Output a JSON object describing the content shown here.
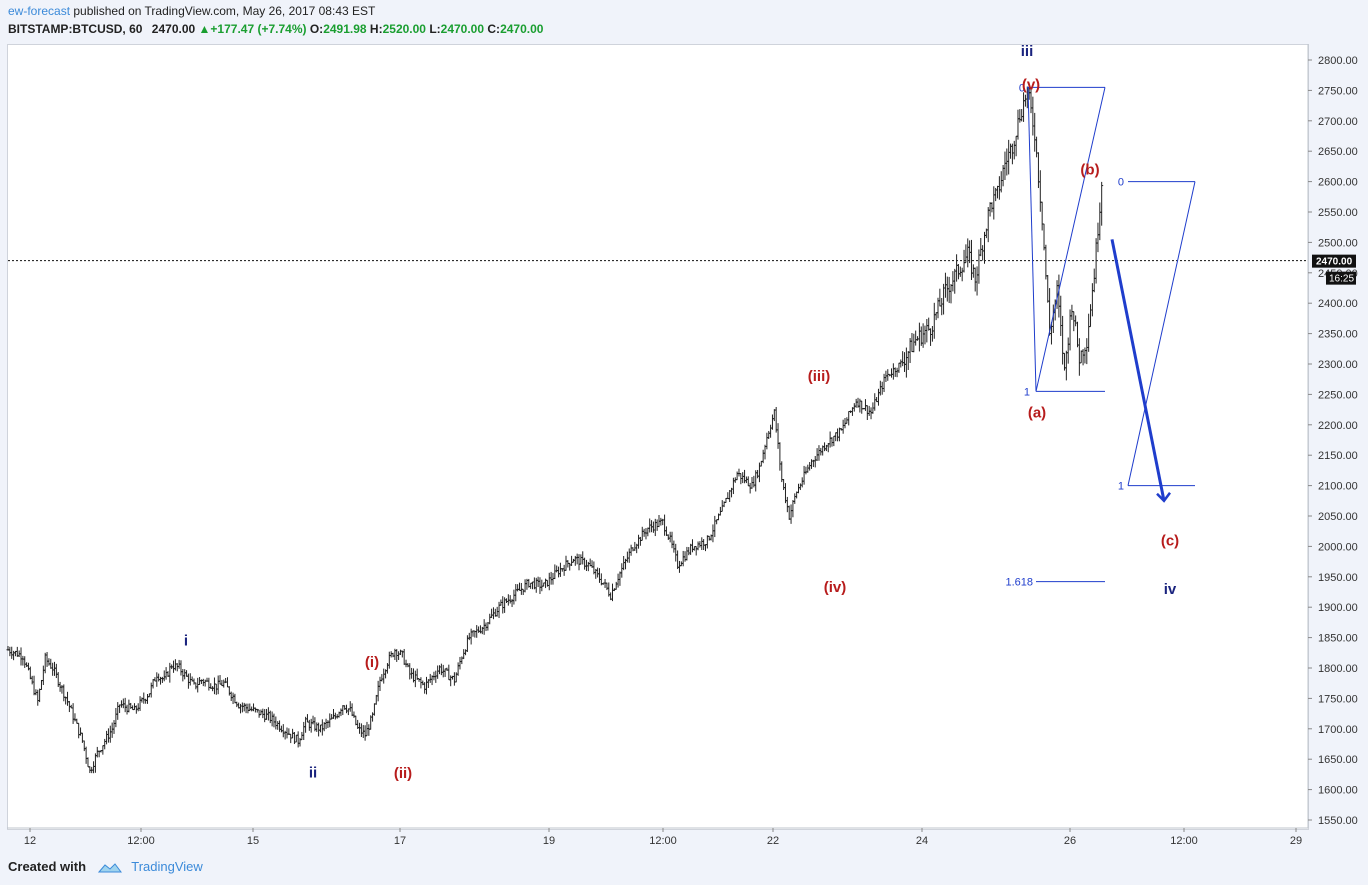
{
  "header": {
    "author": "ew-forecast",
    "published_text": " published on TradingView.com, May 26, 2017 08:43 EST",
    "symbol": "BITSTAMP:BTCUSD, 60",
    "last": "2470.00",
    "change_arrow": "▲",
    "change": "+177.47 (+7.74%)",
    "o_label": "O:",
    "o_value": "2491.98",
    "h_label": "H:",
    "h_value": "2520.00",
    "l_label": "L:",
    "l_value": "2470.00",
    "c_label": "C:",
    "c_value": "2470.00"
  },
  "footer": {
    "created_with": "Created with",
    "brand": "TradingView"
  },
  "price_tag": {
    "price": "2470.00",
    "countdown": "16:25"
  },
  "colors": {
    "wave_red": "#b71c1c",
    "wave_blue": "#1a237e",
    "fib_blue": "#1f3dcc",
    "arrow_blue": "#1f3dcc",
    "candle": "#222222",
    "price_tag": "#111111"
  },
  "chart_data": {
    "type": "candlestick",
    "symbol": "BITSTAMP:BTCUSD",
    "interval": "60",
    "ylim": [
      1530,
      2810
    ],
    "y_ticks": [
      "2800.00",
      "2750.00",
      "2700.00",
      "2650.00",
      "2600.00",
      "2550.00",
      "2500.00",
      "2450.00",
      "2400.00",
      "2350.00",
      "2300.00",
      "2250.00",
      "2200.00",
      "2150.00",
      "2100.00",
      "2050.00",
      "2000.00",
      "1950.00",
      "1900.00",
      "1850.00",
      "1800.00",
      "1750.00",
      "1700.00",
      "1650.00",
      "1600.00",
      "1550.00"
    ],
    "x_ticks": [
      "12",
      "12:00",
      "15",
      "17",
      "19",
      "12:00",
      "22",
      "24",
      "26",
      "12:00",
      "29"
    ],
    "last_price": 2470.0,
    "price_path": [
      [
        0,
        1830
      ],
      [
        2,
        1820
      ],
      [
        4,
        1745
      ],
      [
        5,
        1815
      ],
      [
        6,
        1800
      ],
      [
        8,
        1745
      ],
      [
        10,
        1680
      ],
      [
        11,
        1630
      ],
      [
        12,
        1660
      ],
      [
        14,
        1700
      ],
      [
        15,
        1740
      ],
      [
        17,
        1730
      ],
      [
        19,
        1760
      ],
      [
        20,
        1790
      ],
      [
        21,
        1780
      ],
      [
        22,
        1805
      ],
      [
        23,
        1800
      ],
      [
        25,
        1770
      ],
      [
        26,
        1780
      ],
      [
        28,
        1770
      ],
      [
        29,
        1775
      ],
      [
        31,
        1740
      ],
      [
        33,
        1730
      ],
      [
        35,
        1720
      ],
      [
        37,
        1700
      ],
      [
        39,
        1680
      ],
      [
        40,
        1710
      ],
      [
        42,
        1700
      ],
      [
        44,
        1720
      ],
      [
        45,
        1740
      ],
      [
        46,
        1730
      ],
      [
        47,
        1700
      ],
      [
        48,
        1690
      ],
      [
        49,
        1720
      ],
      [
        50,
        1780
      ],
      [
        51,
        1810
      ],
      [
        52,
        1830
      ],
      [
        53,
        1820
      ],
      [
        54,
        1790
      ],
      [
        56,
        1770
      ],
      [
        58,
        1800
      ],
      [
        60,
        1780
      ],
      [
        61,
        1820
      ],
      [
        62,
        1850
      ],
      [
        64,
        1870
      ],
      [
        66,
        1900
      ],
      [
        68,
        1920
      ],
      [
        70,
        1940
      ],
      [
        72,
        1935
      ],
      [
        74,
        1960
      ],
      [
        76,
        1980
      ],
      [
        78,
        1970
      ],
      [
        80,
        1940
      ],
      [
        81,
        1920
      ],
      [
        82,
        1950
      ],
      [
        84,
        2000
      ],
      [
        86,
        2030
      ],
      [
        88,
        2040
      ],
      [
        89,
        2010
      ],
      [
        90,
        1970
      ],
      [
        92,
        2000
      ],
      [
        94,
        2010
      ],
      [
        96,
        2060
      ],
      [
        98,
        2120
      ],
      [
        100,
        2100
      ],
      [
        101,
        2130
      ],
      [
        102,
        2180
      ],
      [
        103,
        2220
      ],
      [
        104,
        2110
      ],
      [
        105,
        2050
      ],
      [
        106,
        2090
      ],
      [
        108,
        2140
      ],
      [
        110,
        2170
      ],
      [
        112,
        2190
      ],
      [
        114,
        2240
      ],
      [
        116,
        2220
      ],
      [
        118,
        2280
      ],
      [
        120,
        2300
      ],
      [
        122,
        2340
      ],
      [
        124,
        2360
      ],
      [
        125,
        2390
      ],
      [
        126,
        2420
      ],
      [
        128,
        2460
      ],
      [
        129,
        2480
      ],
      [
        130,
        2440
      ],
      [
        131,
        2500
      ],
      [
        132,
        2560
      ],
      [
        133,
        2580
      ],
      [
        134,
        2630
      ],
      [
        135,
        2660
      ],
      [
        136,
        2710
      ],
      [
        137,
        2750
      ],
      [
        138,
        2680
      ],
      [
        139,
        2540
      ],
      [
        140,
        2350
      ],
      [
        141,
        2420
      ],
      [
        142,
        2290
      ],
      [
        143,
        2400
      ],
      [
        144,
        2310
      ],
      [
        145,
        2340
      ],
      [
        146,
        2450
      ],
      [
        147,
        2600
      ],
      [
        148,
        2560
      ],
      [
        149,
        2470
      ]
    ],
    "price_lines": [
      {
        "value": 2470.0,
        "style": "dotted"
      }
    ],
    "wave_labels": [
      {
        "text": "i",
        "price": 1845,
        "bar": 24,
        "color": "blue"
      },
      {
        "text": "ii",
        "price": 1628,
        "bar": 40,
        "color": "blue"
      },
      {
        "text": "iii",
        "price": 2815,
        "bar": 135,
        "color": "blue"
      },
      {
        "text": "iv",
        "price": 1930,
        "bar": 151,
        "color": "blue"
      },
      {
        "text": "(i)",
        "price": 1810,
        "bar": 48,
        "color": "red"
      },
      {
        "text": "(ii)",
        "price": 1627,
        "bar": 52,
        "color": "red"
      },
      {
        "text": "(iii)",
        "price": 2280,
        "bar": 107,
        "color": "red"
      },
      {
        "text": "(iv)",
        "price": 1933,
        "bar": 110,
        "color": "red"
      },
      {
        "text": "(v)",
        "price": 2760,
        "bar": 136,
        "color": "red"
      },
      {
        "text": "(a)",
        "price": 2220,
        "bar": 137,
        "color": "red"
      },
      {
        "text": "(b)",
        "price": 2620,
        "bar": 144,
        "color": "red"
      },
      {
        "text": "(c)",
        "price": 2010,
        "bar": 155,
        "color": "red"
      }
    ],
    "fib_tools": [
      {
        "levels": [
          {
            "label": "0",
            "price": 2755
          },
          {
            "label": "1",
            "price": 2255
          },
          {
            "label": "1.618",
            "price": 1942
          }
        ]
      },
      {
        "levels": [
          {
            "label": "0",
            "price": 2600
          },
          {
            "label": "1",
            "price": 2100
          }
        ]
      }
    ],
    "forecast_arrow": {
      "from_price": 2505,
      "to_price": 2075
    }
  }
}
